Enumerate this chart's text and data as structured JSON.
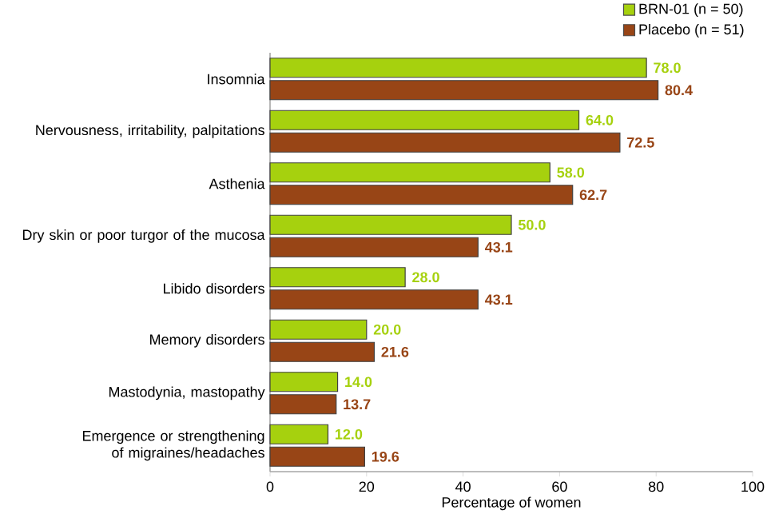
{
  "chart_data": {
    "type": "bar",
    "orientation": "horizontal",
    "xlabel": "Percentage of women",
    "categories": [
      "Insomnia",
      "Nervousness, irritability, palpitations",
      "Asthenia",
      "Dry skin or poor turgor of the mucosa",
      "Libido disorders",
      "Memory disorders",
      "Mastodynia, mastopathy",
      "Emergence or strengthening of migraines/headaches"
    ],
    "series": [
      {
        "name": "BRN-01 (n = 50)",
        "color": "#a6d10e",
        "values": [
          78.0,
          64.0,
          58.0,
          50.0,
          28.0,
          20.0,
          14.0,
          12.0
        ],
        "value_labels": [
          "78.0",
          "64.0",
          "58.0",
          "50.0",
          "28.0",
          "20.0",
          "14.0",
          "12.0"
        ]
      },
      {
        "name": "Placebo (n = 51)",
        "color": "#984516",
        "values": [
          80.4,
          72.5,
          62.7,
          43.1,
          43.1,
          21.6,
          13.7,
          19.6
        ],
        "value_labels": [
          "80.4",
          "72.5",
          "62.7",
          "43.1",
          "43.1",
          "21.6",
          "13.7",
          "19.6"
        ]
      }
    ],
    "xlim": [
      0,
      100
    ],
    "xticks": [
      0,
      20,
      40,
      60,
      80,
      100
    ],
    "legend": "top right",
    "grid": false
  }
}
